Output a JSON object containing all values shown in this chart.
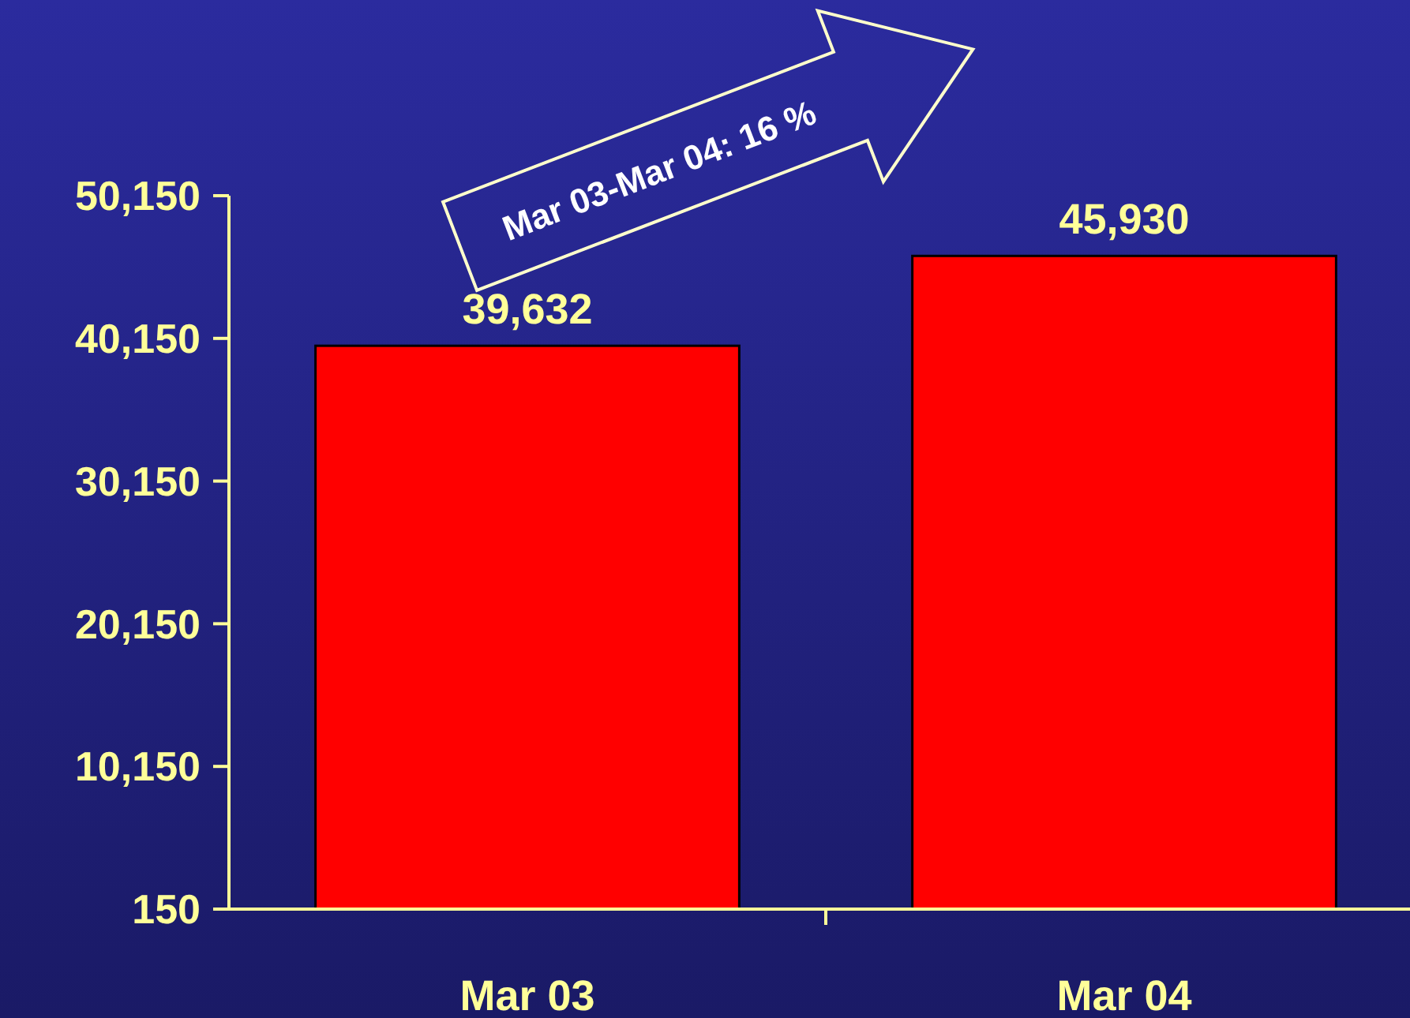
{
  "chart_data": {
    "type": "bar",
    "categories": [
      "Mar 03",
      "Mar 04"
    ],
    "values": [
      39632,
      45930
    ],
    "color": "#ff0000",
    "ylim": [
      150,
      50150
    ],
    "yticks": [
      150,
      {
        "value": 10150,
        "label": "10,150"
      },
      {
        "value": 20150,
        "label": "20,150"
      },
      {
        "value": 30150,
        "label": "30,150"
      },
      {
        "value": 40150,
        "label": "40,150"
      },
      {
        "value": 50150,
        "label": "50,150"
      }
    ],
    "value_labels": [
      "39,632",
      "45,930"
    ],
    "grid": false,
    "annotations": [
      "Mar 03-Mar 04: 16 %"
    ]
  }
}
